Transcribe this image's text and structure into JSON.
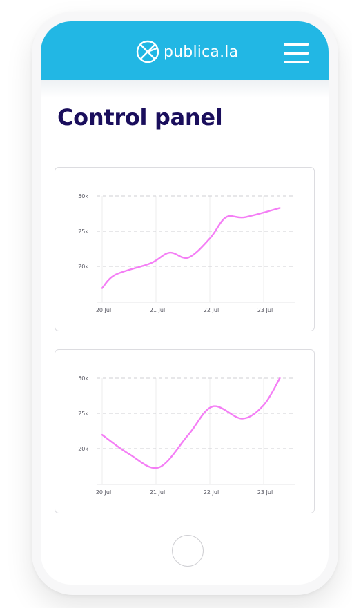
{
  "header": {
    "brand": "publica.la",
    "background_color": "#22b7e4",
    "logo_icon": "publica-logo-icon",
    "menu_icon": "hamburger-menu-icon"
  },
  "page": {
    "title": "Control panel",
    "title_color": "#1a0e5c"
  },
  "chart_data": [
    {
      "type": "line",
      "x": [
        "20 Jul",
        "21 Jul",
        "22 Jul",
        "23 Jul"
      ],
      "y_ticks": [
        "50k",
        "25k",
        "20k"
      ],
      "series": [
        {
          "color": "#f47ef5",
          "points": [
            [
              0,
              17
            ],
            [
              0.25,
              18.9
            ],
            [
              0.9,
              20.5
            ],
            [
              1.25,
              22
            ],
            [
              1.6,
              21.3
            ],
            [
              2.0,
              24
            ],
            [
              2.3,
              27.0
            ],
            [
              2.65,
              27
            ],
            [
              3.3,
              28.3
            ]
          ]
        }
      ],
      "grid": true
    },
    {
      "type": "line",
      "x": [
        "20 Jul",
        "21 Jul",
        "22 Jul",
        "23 Jul"
      ],
      "y_ticks": [
        "50k",
        "25k",
        "20k"
      ],
      "series": [
        {
          "color": "#f47ef5",
          "points": [
            [
              0,
              22
            ],
            [
              0.5,
              19.3
            ],
            [
              1.05,
              17.4
            ],
            [
              1.6,
              22
            ],
            [
              2.05,
              26
            ],
            [
              2.6,
              24.3
            ],
            [
              3.0,
              26.2
            ],
            [
              3.3,
              30
            ]
          ]
        }
      ],
      "grid": true
    }
  ],
  "home_button_icon": "home-button-icon"
}
